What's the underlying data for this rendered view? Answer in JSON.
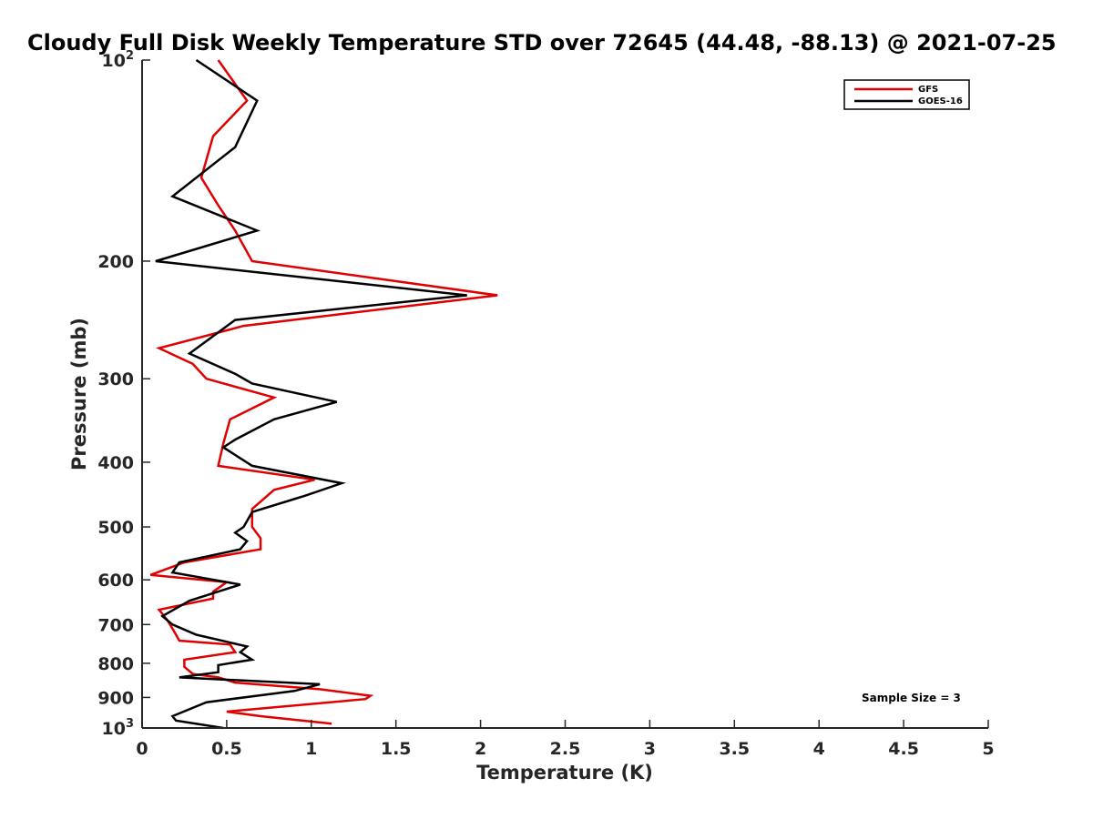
{
  "chart_data": {
    "type": "line",
    "title": "Cloudy Full Disk Weekly Temperature STD over 72645 (44.48, -88.13) @ 2021-07-25",
    "xlabel": "Temperature (K)",
    "ylabel": "Pressure (mb)",
    "xlim": [
      0,
      5
    ],
    "ylim": [
      100,
      1000
    ],
    "y_scale": "log",
    "y_reversed": true,
    "x_ticks": [
      "0",
      "0.5",
      "1",
      "1.5",
      "2",
      "2.5",
      "3",
      "3.5",
      "4",
      "4.5",
      "5"
    ],
    "y_ticks": [
      {
        "value": 100,
        "base": "10",
        "exp": "2"
      },
      {
        "value": 200,
        "label": "200"
      },
      {
        "value": 300,
        "label": "300"
      },
      {
        "value": 400,
        "label": "400"
      },
      {
        "value": 500,
        "label": "500"
      },
      {
        "value": 600,
        "label": "600"
      },
      {
        "value": 700,
        "label": "700"
      },
      {
        "value": 800,
        "label": "800"
      },
      {
        "value": 900,
        "label": "900"
      },
      {
        "value": 1000,
        "base": "10",
        "exp": "3"
      }
    ],
    "legend_position": "top-right",
    "grid": false,
    "series": [
      {
        "name": "GFS",
        "color": "#e00000",
        "points": [
          [
            0.45,
            100
          ],
          [
            0.62,
            115
          ],
          [
            0.42,
            130
          ],
          [
            0.35,
            150
          ],
          [
            0.45,
            165
          ],
          [
            0.55,
            180
          ],
          [
            0.65,
            200
          ],
          [
            2.1,
            225
          ],
          [
            0.6,
            250
          ],
          [
            0.1,
            270
          ],
          [
            0.3,
            285
          ],
          [
            0.38,
            300
          ],
          [
            0.78,
            320
          ],
          [
            0.52,
            345
          ],
          [
            0.48,
            375
          ],
          [
            0.45,
            405
          ],
          [
            1.02,
            425
          ],
          [
            0.78,
            440
          ],
          [
            0.65,
            470
          ],
          [
            0.65,
            500
          ],
          [
            0.7,
            520
          ],
          [
            0.7,
            540
          ],
          [
            0.25,
            565
          ],
          [
            0.05,
            590
          ],
          [
            0.5,
            605
          ],
          [
            0.42,
            625
          ],
          [
            0.42,
            640
          ],
          [
            0.1,
            665
          ],
          [
            0.15,
            690
          ],
          [
            0.18,
            710
          ],
          [
            0.22,
            740
          ],
          [
            0.52,
            750
          ],
          [
            0.55,
            770
          ],
          [
            0.25,
            790
          ],
          [
            0.25,
            810
          ],
          [
            0.3,
            830
          ],
          [
            0.45,
            840
          ],
          [
            0.55,
            855
          ],
          [
            1.05,
            875
          ],
          [
            1.35,
            895
          ],
          [
            1.32,
            905
          ],
          [
            0.5,
            945
          ],
          [
            0.7,
            960
          ],
          [
            1.12,
            985
          ]
        ]
      },
      {
        "name": "GOES-16",
        "color": "#000000",
        "points": [
          [
            0.32,
            100
          ],
          [
            0.68,
            115
          ],
          [
            0.55,
            135
          ],
          [
            0.18,
            160
          ],
          [
            0.68,
            180
          ],
          [
            0.08,
            200
          ],
          [
            1.92,
            225
          ],
          [
            0.55,
            245
          ],
          [
            0.28,
            275
          ],
          [
            0.55,
            295
          ],
          [
            0.65,
            305
          ],
          [
            1.15,
            325
          ],
          [
            0.78,
            345
          ],
          [
            0.55,
            370
          ],
          [
            0.48,
            380
          ],
          [
            0.65,
            405
          ],
          [
            1.18,
            430
          ],
          [
            0.95,
            450
          ],
          [
            0.65,
            475
          ],
          [
            0.6,
            500
          ],
          [
            0.55,
            510
          ],
          [
            0.62,
            525
          ],
          [
            0.58,
            540
          ],
          [
            0.22,
            565
          ],
          [
            0.18,
            585
          ],
          [
            0.58,
            610
          ],
          [
            0.28,
            645
          ],
          [
            0.12,
            680
          ],
          [
            0.18,
            700
          ],
          [
            0.32,
            725
          ],
          [
            0.62,
            755
          ],
          [
            0.58,
            770
          ],
          [
            0.65,
            790
          ],
          [
            0.45,
            805
          ],
          [
            0.45,
            825
          ],
          [
            0.22,
            840
          ],
          [
            1.05,
            860
          ],
          [
            0.9,
            880
          ],
          [
            0.38,
            915
          ],
          [
            0.18,
            960
          ],
          [
            0.2,
            975
          ],
          [
            0.48,
            1000
          ]
        ]
      }
    ],
    "annotation": "Sample Size = 3"
  }
}
